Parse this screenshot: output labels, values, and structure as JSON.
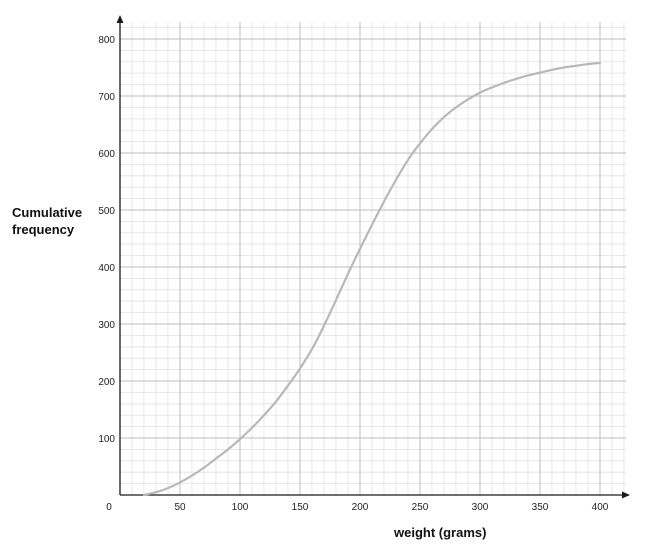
{
  "chart_data": {
    "type": "line",
    "title": "",
    "ylabel_lines": [
      "Cumulative",
      "frequency"
    ],
    "xlabel": "weight (grams)",
    "origin_label": "0",
    "xlim": [
      0,
      420
    ],
    "ylim": [
      0,
      800
    ],
    "x_ticks": [
      50,
      100,
      150,
      200,
      250,
      300,
      350,
      400
    ],
    "y_ticks": [
      100,
      200,
      300,
      400,
      500,
      600,
      700,
      800
    ],
    "grid": true,
    "minor_grid_step_x": 10,
    "minor_grid_step_y": 20,
    "series": [
      {
        "points": [
          [
            20,
            0
          ],
          [
            30,
            5
          ],
          [
            40,
            12
          ],
          [
            50,
            22
          ],
          [
            60,
            34
          ],
          [
            70,
            48
          ],
          [
            80,
            64
          ],
          [
            90,
            80
          ],
          [
            100,
            98
          ],
          [
            110,
            118
          ],
          [
            120,
            140
          ],
          [
            130,
            164
          ],
          [
            140,
            192
          ],
          [
            150,
            222
          ],
          [
            160,
            256
          ],
          [
            170,
            297
          ],
          [
            180,
            342
          ],
          [
            190,
            388
          ],
          [
            200,
            432
          ],
          [
            210,
            474
          ],
          [
            220,
            515
          ],
          [
            230,
            553
          ],
          [
            240,
            588
          ],
          [
            250,
            617
          ],
          [
            260,
            642
          ],
          [
            270,
            663
          ],
          [
            280,
            680
          ],
          [
            290,
            694
          ],
          [
            300,
            706
          ],
          [
            310,
            715
          ],
          [
            320,
            723
          ],
          [
            330,
            730
          ],
          [
            340,
            736
          ],
          [
            350,
            741
          ],
          [
            360,
            746
          ],
          [
            370,
            750
          ],
          [
            380,
            753
          ],
          [
            390,
            756
          ],
          [
            400,
            758
          ]
        ]
      }
    ],
    "colors": {
      "curve": "#b8b8b8",
      "major_grid": "#bdbdbd",
      "minor_grid": "#e2e2e2",
      "axis": "#1a1a1a"
    }
  }
}
